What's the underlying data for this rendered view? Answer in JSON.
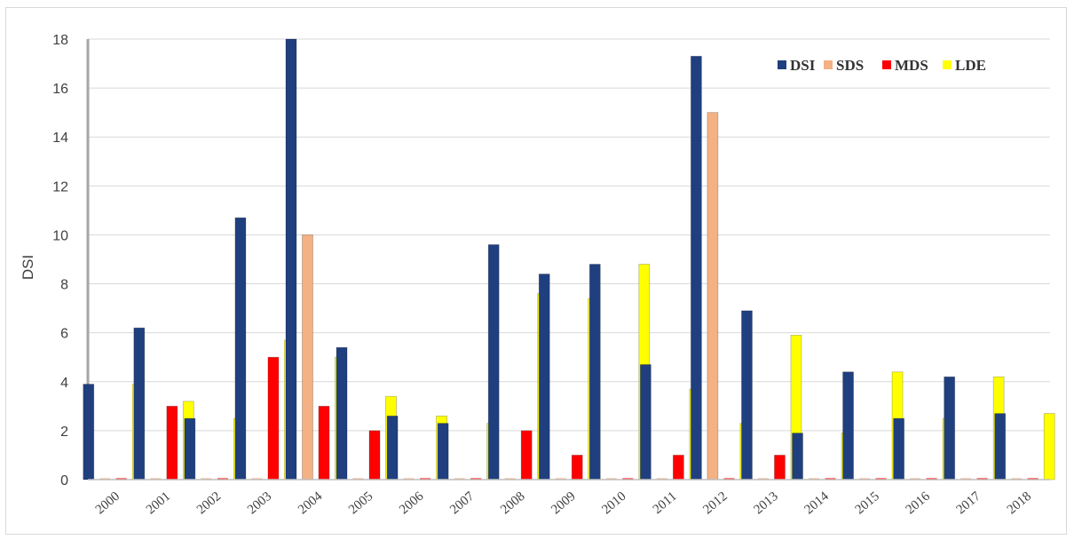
{
  "chart_data": {
    "type": "bar",
    "title": "",
    "xlabel": "",
    "ylabel": "DSI",
    "ylim": [
      0,
      18
    ],
    "yticks": [
      0,
      2,
      4,
      6,
      8,
      10,
      12,
      14,
      16,
      18
    ],
    "grid": true,
    "legend_position": "top-right",
    "categories": [
      "2000",
      "2001",
      "2002",
      "2003",
      "2004",
      "2005",
      "2006",
      "2007",
      "2008",
      "2009",
      "2010",
      "2011",
      "2012",
      "2013",
      "2014",
      "2015",
      "2016",
      "2017",
      "2018"
    ],
    "series": [
      {
        "name": "DSI",
        "color": "#1f3f7f",
        "values": [
          3.9,
          6.2,
          2.5,
          10.7,
          18.0,
          5.4,
          2.6,
          2.3,
          9.6,
          8.4,
          8.8,
          4.7,
          17.3,
          6.9,
          1.9,
          4.4,
          2.5,
          4.2,
          2.7
        ]
      },
      {
        "name": "SDS",
        "color": "#f4b183",
        "values": [
          0,
          0,
          0,
          0,
          10.0,
          0,
          0,
          0,
          0,
          0,
          0,
          0,
          15.0,
          0,
          0,
          0,
          0,
          0,
          0
        ]
      },
      {
        "name": "MDS",
        "color": "#ff0000",
        "values": [
          0,
          3.0,
          0,
          5.0,
          3.0,
          2.0,
          0,
          0,
          2.0,
          1.0,
          0,
          1.0,
          0,
          1.0,
          0,
          0,
          0,
          0,
          0
        ]
      },
      {
        "name": "LDE",
        "color": "#ffff00",
        "values": [
          3.9,
          3.2,
          2.5,
          5.7,
          5.0,
          3.4,
          2.6,
          2.3,
          7.6,
          7.4,
          8.8,
          3.7,
          2.3,
          5.9,
          1.9,
          4.4,
          2.5,
          4.2,
          2.7
        ]
      }
    ]
  }
}
